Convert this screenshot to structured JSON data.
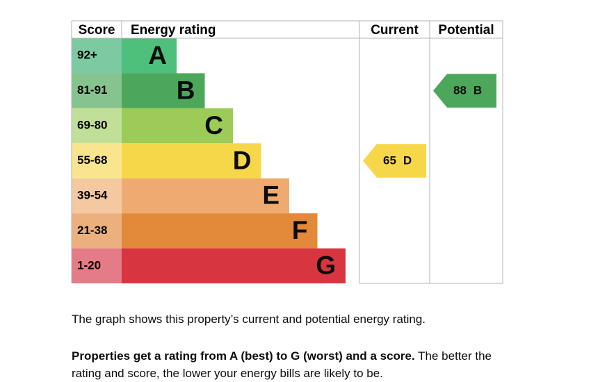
{
  "chart_data": {
    "type": "epc",
    "headers": [
      "Score",
      "Energy rating",
      "Current",
      "Potential"
    ],
    "bands": [
      {
        "score": "92+",
        "letter": "A",
        "color": "#4fbf7c",
        "light": "#7dc9a1"
      },
      {
        "score": "81-91",
        "letter": "B",
        "color": "#4ca75a",
        "light": "#86c48f"
      },
      {
        "score": "69-80",
        "letter": "C",
        "color": "#9ccb58",
        "light": "#c2df9a"
      },
      {
        "score": "55-68",
        "letter": "D",
        "color": "#f7d74a",
        "light": "#f9e58e"
      },
      {
        "score": "39-54",
        "letter": "E",
        "color": "#efab6f",
        "light": "#f4c9a2"
      },
      {
        "score": "21-38",
        "letter": "F",
        "color": "#e3893a",
        "light": "#ecb07e"
      },
      {
        "score": "1-20",
        "letter": "G",
        "color": "#d7353f",
        "light": "#e47b86"
      }
    ],
    "current": {
      "score": 65,
      "band": "D"
    },
    "potential": {
      "score": 88,
      "band": "B"
    }
  },
  "text": {
    "p1": "The graph shows this property’s current and potential energy rating.",
    "p2_bold": "Properties get a rating from A (best) to G (worst) and a score.",
    "p2": "The better the rating and score, the lower your energy bills are likely to be."
  }
}
